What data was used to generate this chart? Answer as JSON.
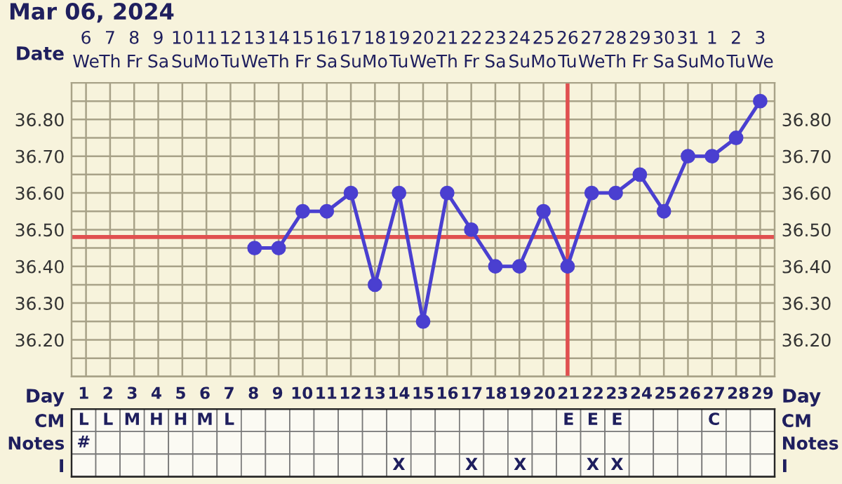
{
  "chart_data": [
    {
      "type": "line",
      "title": "Mar 06, 2024",
      "xlabel": "Date",
      "categories": [
        "6\nWe",
        "7\nTh",
        "8\nFr",
        "9\nSa",
        "10\nSu",
        "11\nMo",
        "12\nTu",
        "13\nWe",
        "14\nTh",
        "15\nFr",
        "16\nSa",
        "17\nSu",
        "18\nMo",
        "19\nTu",
        "20\nWe",
        "21\nTh",
        "22\nFr",
        "23\nSa",
        "24\nSu",
        "25\nMo",
        "26\nTu",
        "27\nWe",
        "28\nTh",
        "29\nFr",
        "30\nSa",
        "31\nSu",
        "1\nMo",
        "2\nTu",
        "3\nWe"
      ],
      "series": [
        {
          "color": "#4a3fd0",
          "values": [
            null,
            null,
            null,
            null,
            null,
            null,
            null,
            36.45,
            36.45,
            36.55,
            36.55,
            36.6,
            36.35,
            36.6,
            36.25,
            36.6,
            36.5,
            36.4,
            36.4,
            36.55,
            36.4,
            36.6,
            36.6,
            36.65,
            36.55,
            36.7,
            36.7,
            36.75,
            36.85
          ]
        }
      ],
      "ylim": [
        36.1,
        36.9
      ],
      "yticks": [
        {
          "value": 36.2,
          "label": "36.20"
        },
        {
          "value": 36.3,
          "label": "36.30"
        },
        {
          "value": 36.4,
          "label": "36.40"
        },
        {
          "value": 36.5,
          "label": "36.50"
        },
        {
          "value": 36.6,
          "label": "36.60"
        },
        {
          "value": 36.7,
          "label": "36.70"
        },
        {
          "value": 36.8,
          "label": "36.80"
        }
      ],
      "y2lim": [
        36.1,
        36.9
      ],
      "y2ticks": [
        {
          "value": 36.2,
          "label": "36.20"
        },
        {
          "value": 36.3,
          "label": "36.30"
        },
        {
          "value": 36.4,
          "label": "36.40"
        },
        {
          "value": 36.5,
          "label": "36.50"
        },
        {
          "value": 36.6,
          "label": "36.60"
        },
        {
          "value": 36.7,
          "label": "36.70"
        },
        {
          "value": 36.8,
          "label": "36.80"
        }
      ],
      "ref_lines": [
        {
          "axis": "y",
          "value": 36.48,
          "color": "#e05050"
        },
        {
          "axis": "x",
          "value": "26\nTu",
          "color": "#e05050"
        }
      ],
      "grid": true,
      "marker": "circle",
      "line_style": "solid",
      "legend": false
    },
    {
      "type": "heatmap",
      "xlabel": "Day",
      "categories": [
        "1",
        "2",
        "3",
        "4",
        "5",
        "6",
        "7",
        "8",
        "9",
        "10",
        "11",
        "12",
        "13",
        "14",
        "15",
        "16",
        "17",
        "18",
        "19",
        "20",
        "21",
        "22",
        "23",
        "24",
        "25",
        "26",
        "27",
        "28",
        "29"
      ],
      "y_categories": [
        "CM",
        "Notes",
        "I"
      ],
      "y2_categories": [
        "CM",
        "Notes",
        "I"
      ],
      "cells": [
        [
          null,
          null,
          null,
          null,
          null,
          null,
          null,
          null,
          null,
          null,
          null,
          null,
          null,
          null,
          null,
          null,
          null,
          null,
          null,
          null,
          null,
          null,
          null,
          null,
          null,
          null,
          null,
          null,
          null
        ],
        [
          null,
          null,
          null,
          null,
          null,
          null,
          null,
          null,
          null,
          null,
          null,
          null,
          null,
          null,
          null,
          null,
          null,
          null,
          null,
          null,
          null,
          null,
          null,
          null,
          null,
          null,
          null,
          null,
          null
        ],
        [
          null,
          null,
          null,
          null,
          null,
          null,
          null,
          null,
          null,
          null,
          null,
          null,
          null,
          null,
          null,
          null,
          null,
          null,
          null,
          null,
          null,
          null,
          null,
          null,
          null,
          null,
          null,
          null,
          null
        ]
      ],
      "cell_labels": [
        [
          "L",
          "L",
          "M",
          "H",
          "H",
          "M",
          "L",
          null,
          null,
          null,
          null,
          null,
          null,
          null,
          null,
          null,
          null,
          null,
          null,
          null,
          "E",
          "E",
          "E",
          null,
          null,
          null,
          "C",
          null,
          null
        ],
        [
          "#",
          null,
          null,
          null,
          null,
          null,
          null,
          null,
          null,
          null,
          null,
          null,
          null,
          null,
          null,
          null,
          null,
          null,
          null,
          null,
          null,
          null,
          null,
          null,
          null,
          null,
          null,
          null,
          null
        ],
        [
          null,
          null,
          null,
          null,
          null,
          null,
          null,
          null,
          null,
          null,
          null,
          null,
          null,
          "X",
          null,
          null,
          "X",
          null,
          "X",
          null,
          null,
          "X",
          "X",
          null,
          null,
          null,
          null,
          null,
          null
        ]
      ]
    }
  ]
}
